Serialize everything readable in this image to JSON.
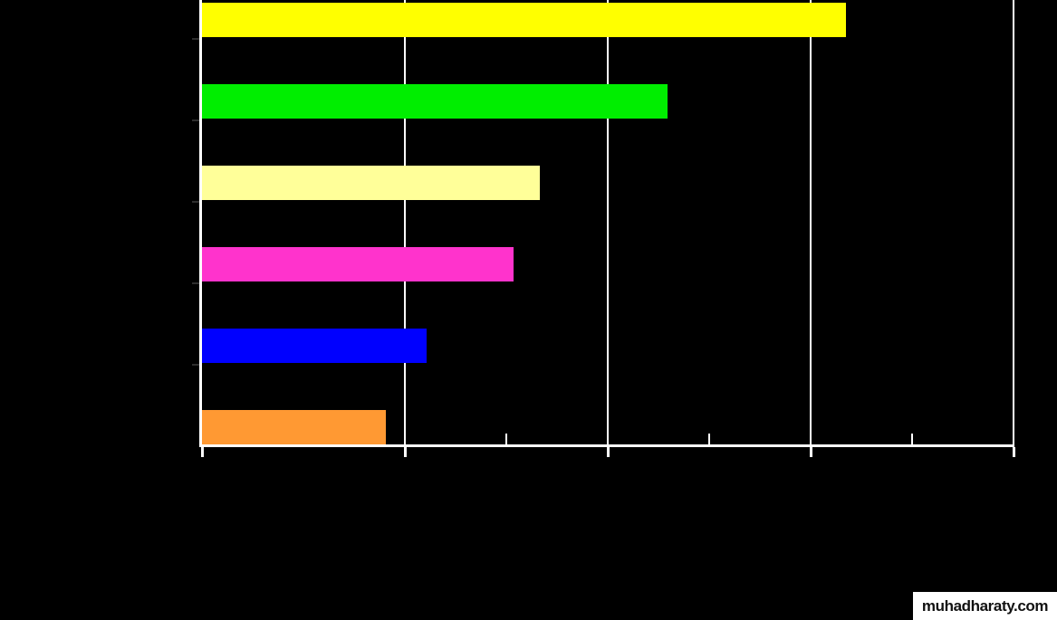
{
  "chart_data": {
    "type": "bar",
    "orientation": "horizontal",
    "title": "",
    "xlabel": "",
    "ylabel": "",
    "categories": [
      "",
      "",
      "",
      "",
      "",
      ""
    ],
    "series": [
      {
        "name": "",
        "values": [
          3.18,
          2.3,
          1.67,
          1.54,
          1.11,
          0.91
        ]
      }
    ],
    "bar_colors": [
      "#ffff00",
      "#00ee00",
      "#ffff99",
      "#ff33cc",
      "#0000ff",
      "#ff9933"
    ],
    "x_axis": {
      "min": 0,
      "max": 4,
      "major_step": 1,
      "minor_step": 0.5,
      "tick_labels_visible": false
    },
    "legend": null,
    "grid": true,
    "gridline_positions": [
      1,
      2,
      3,
      4
    ],
    "background_color": "#000000",
    "axis_color": "#ffffff"
  },
  "watermark": {
    "text": "muhadharaty.com",
    "background_color": "#ffffff",
    "text_color": "#111111"
  }
}
